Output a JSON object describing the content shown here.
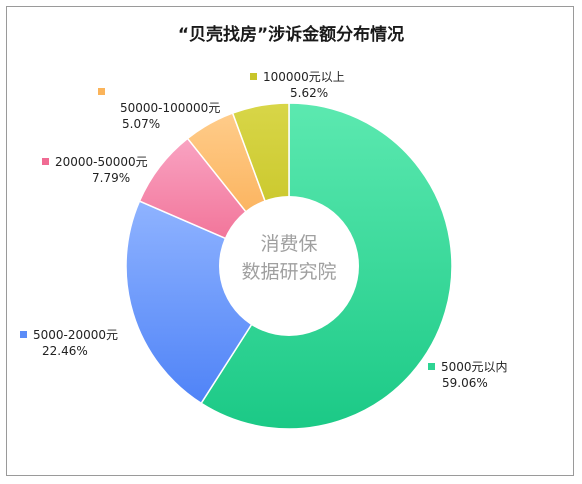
{
  "chart_data": {
    "type": "pie",
    "title": "“贝壳找房”涉诉金额分布情况",
    "watermark": [
      "消费保",
      "数据研究院"
    ],
    "slices": [
      {
        "label": "5000元以内",
        "value": 59.06,
        "pct_text": "59.06%",
        "color_a": "#5ce9b0",
        "color_b": "#1bc986"
      },
      {
        "label": "5000-20000元",
        "value": 22.46,
        "pct_text": "22.46%",
        "color_a": "#8fb3ff",
        "color_b": "#4f83f7"
      },
      {
        "label": "20000-50000元",
        "value": 7.79,
        "pct_text": "7.79%",
        "color_a": "#f9a3c2",
        "color_b": "#f0698f"
      },
      {
        "label": "50000-100000元",
        "value": 5.07,
        "pct_text": "5.07%",
        "color_a": "#ffcc8a",
        "color_b": "#f9a84a"
      },
      {
        "label": "100000元以上",
        "value": 5.62,
        "pct_text": "5.62%",
        "color_a": "#d8d648",
        "color_b": "#c4c11f"
      }
    ]
  }
}
